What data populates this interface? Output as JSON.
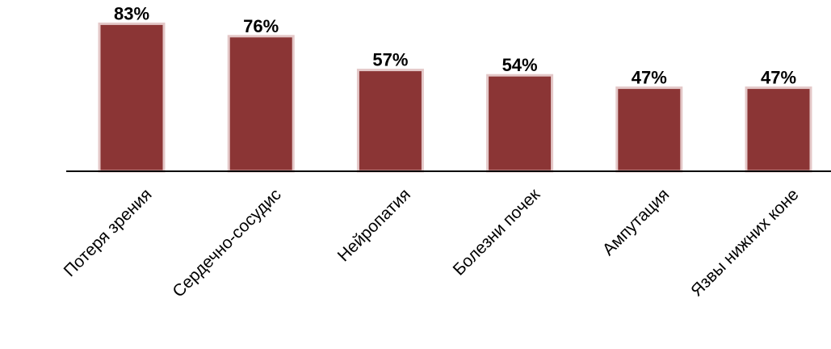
{
  "chart_data": {
    "type": "bar",
    "title": "",
    "xlabel": "",
    "ylabel": "",
    "categories": [
      "Потеря зрения",
      "Сердечно-сосудис",
      "Нейропатия",
      "Болезни почек",
      "Ампутация",
      "Язвы нижних коне"
    ],
    "values": [
      83,
      76,
      57,
      54,
      47,
      47
    ],
    "value_labels": [
      "83%",
      "76%",
      "57%",
      "54%",
      "47%",
      "47%"
    ],
    "unit": "%",
    "ylim": [
      0,
      100
    ],
    "grid": false,
    "legend": "none",
    "bar_color": "#8B3535",
    "bar_border_color": "#E4C8C8",
    "axis_color": "#000000"
  }
}
